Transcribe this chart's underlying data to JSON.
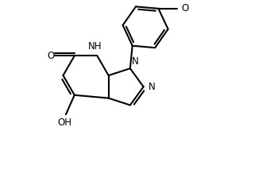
{
  "bg_color": "#ffffff",
  "line_color": "#000000",
  "line_width": 1.5,
  "font_size": 8.5,
  "figsize": [
    3.5,
    2.18
  ],
  "dpi": 100,
  "xlim": [
    0,
    10
  ],
  "ylim": [
    0,
    6.2
  ],
  "bl": 0.82
}
